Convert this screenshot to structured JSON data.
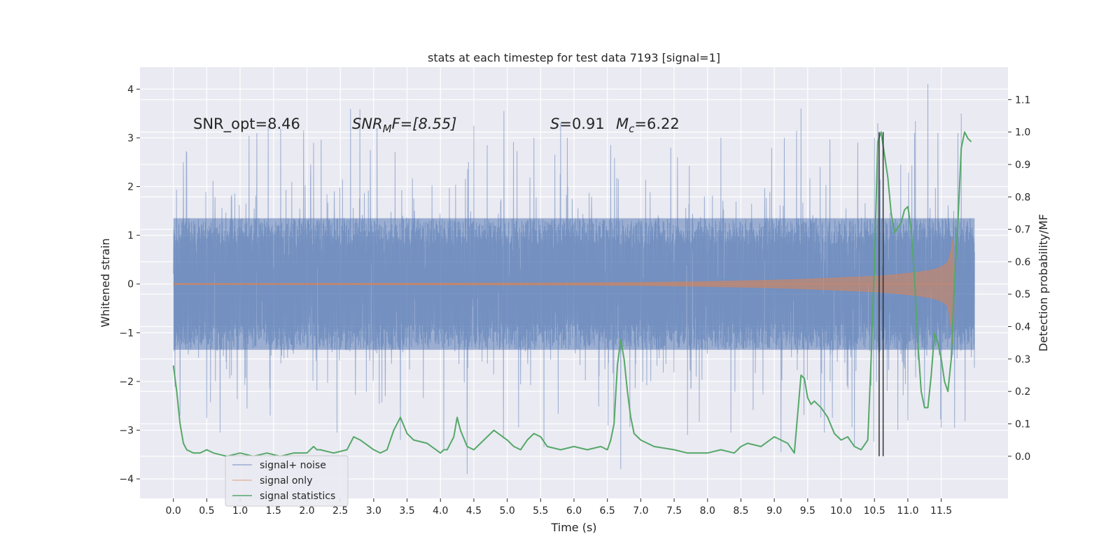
{
  "chart_data": {
    "type": "line",
    "title": "stats at each timestep for test data 7193 [signal=1]",
    "xlabel": "Time (s)",
    "ylabel": "Whitened strain",
    "y2label": "Detection probability/MF",
    "xlim": [
      -0.5,
      12.5
    ],
    "ylim": [
      -4.4,
      4.45
    ],
    "y2lim": [
      -0.13,
      1.2
    ],
    "x_ticks": [
      0.0,
      0.5,
      1.0,
      1.5,
      2.0,
      2.5,
      3.0,
      3.5,
      4.0,
      4.5,
      5.0,
      5.5,
      6.0,
      6.5,
      7.0,
      7.5,
      8.0,
      8.5,
      9.0,
      9.5,
      10.0,
      10.5,
      11.0,
      11.5
    ],
    "x_tick_labels": [
      "0.0",
      "0.5",
      "1.0",
      "1.5",
      "2.0",
      "2.5",
      "3.0",
      "3.5",
      "4.0",
      "4.5",
      "5.0",
      "5.5",
      "6.0",
      "6.5",
      "7.0",
      "7.5",
      "8.0",
      "8.5",
      "9.0",
      "9.5",
      "10.0",
      "10.5",
      "11.0",
      "11.5"
    ],
    "y_ticks": [
      -4,
      -3,
      -2,
      -1,
      0,
      1,
      2,
      3,
      4
    ],
    "y_tick_labels": [
      "−4",
      "−3",
      "−2",
      "−1",
      "0",
      "1",
      "2",
      "3",
      "4"
    ],
    "y2_ticks": [
      0.0,
      0.1,
      0.2,
      0.3,
      0.4,
      0.5,
      0.6,
      0.7,
      0.8,
      0.9,
      1.0,
      1.1
    ],
    "y2_tick_labels": [
      "0.0",
      "0.1",
      "0.2",
      "0.3",
      "0.4",
      "0.5",
      "0.6",
      "0.7",
      "0.8",
      "0.9",
      "1.0",
      "1.1"
    ],
    "grid": true,
    "legend_position": "lower-left",
    "annotations": {
      "snr_opt": "SNR_opt=8.46",
      "snr_mf": {
        "base": "SNR",
        "sub": "M",
        "rest": "F=[8.55]"
      },
      "s_val": {
        "sym": "S",
        "rest": "=0.91"
      },
      "mc_val": {
        "sym": "M",
        "sub": "c",
        "rest": "=6.22"
      }
    },
    "vertical_lines_x": [
      10.57,
      10.63
    ],
    "noise_series": {
      "name": "signal+ noise",
      "color": "#4c72b0",
      "x_range": [
        0.0,
        12.0
      ],
      "core_amplitude": 1.35,
      "typical_peak": 2.2,
      "outlier_peaks_upper": [
        {
          "x": 0.05,
          "y": 2.0
        },
        {
          "x": 0.15,
          "y": 2.5
        },
        {
          "x": 0.2,
          "y": 2.7
        },
        {
          "x": 0.7,
          "y": 2.85
        },
        {
          "x": 1.25,
          "y": 3.1
        },
        {
          "x": 1.95,
          "y": 3.15
        },
        {
          "x": 2.1,
          "y": 2.9
        },
        {
          "x": 2.95,
          "y": 2.75
        },
        {
          "x": 3.05,
          "y": 3.2
        },
        {
          "x": 4.5,
          "y": 3.25
        },
        {
          "x": 4.7,
          "y": 2.85
        },
        {
          "x": 4.95,
          "y": 3.55
        },
        {
          "x": 5.4,
          "y": 3.0
        },
        {
          "x": 5.8,
          "y": 3.3
        },
        {
          "x": 5.9,
          "y": 3.0
        },
        {
          "x": 6.55,
          "y": 2.85
        },
        {
          "x": 7.45,
          "y": 2.8
        },
        {
          "x": 7.55,
          "y": 2.6
        },
        {
          "x": 8.2,
          "y": 3.0
        },
        {
          "x": 9.15,
          "y": 3.0
        },
        {
          "x": 9.4,
          "y": 3.6
        },
        {
          "x": 10.25,
          "y": 2.9
        },
        {
          "x": 10.5,
          "y": 3.0
        },
        {
          "x": 10.55,
          "y": 3.3
        },
        {
          "x": 11.1,
          "y": 3.1
        },
        {
          "x": 11.3,
          "y": 4.1
        },
        {
          "x": 11.45,
          "y": 3.1
        },
        {
          "x": 11.75,
          "y": 3.1
        },
        {
          "x": 11.8,
          "y": 3.5
        },
        {
          "x": 11.95,
          "y": 3.0
        }
      ],
      "outlier_peaks_lower": [
        {
          "x": 0.05,
          "y": -1.0
        },
        {
          "x": 0.1,
          "y": -2.7
        },
        {
          "x": 0.5,
          "y": -2.75
        },
        {
          "x": 0.7,
          "y": -3.05
        },
        {
          "x": 1.45,
          "y": -2.7
        },
        {
          "x": 2.45,
          "y": -3.05
        },
        {
          "x": 3.4,
          "y": -3.2
        },
        {
          "x": 4.05,
          "y": -3.4
        },
        {
          "x": 4.4,
          "y": -3.9
        },
        {
          "x": 5.55,
          "y": -3.35
        },
        {
          "x": 6.7,
          "y": -3.8
        },
        {
          "x": 7.7,
          "y": -3.1
        },
        {
          "x": 8.35,
          "y": -3.05
        },
        {
          "x": 9.1,
          "y": -3.45
        },
        {
          "x": 9.75,
          "y": -3.05
        },
        {
          "x": 10.2,
          "y": -3.35
        },
        {
          "x": 10.85,
          "y": -3.0
        },
        {
          "x": 11.0,
          "y": -2.8
        },
        {
          "x": 11.25,
          "y": -2.5
        },
        {
          "x": 11.5,
          "y": -2.95
        },
        {
          "x": 11.7,
          "y": -2.95
        },
        {
          "x": 11.95,
          "y": -1.5
        }
      ]
    },
    "signal_series": {
      "name": "signal only",
      "color": "#dd8452",
      "envelope_x": [
        0.0,
        5.5,
        7.0,
        8.0,
        9.0,
        9.5,
        10.0,
        10.5,
        10.8,
        11.0,
        11.2,
        11.4,
        11.5,
        11.6,
        11.65,
        11.68,
        11.7
      ],
      "envelope_y": [
        0.01,
        0.02,
        0.03,
        0.05,
        0.08,
        0.1,
        0.13,
        0.16,
        0.19,
        0.22,
        0.25,
        0.3,
        0.35,
        0.45,
        0.7,
        0.95,
        0.0
      ]
    },
    "stat_series": {
      "name": "signal statistics",
      "color": "#55a868",
      "x": [
        0.0,
        0.05,
        0.1,
        0.15,
        0.2,
        0.3,
        0.4,
        0.5,
        0.6,
        0.8,
        1.0,
        1.2,
        1.4,
        1.6,
        1.8,
        2.0,
        2.1,
        2.15,
        2.2,
        2.4,
        2.6,
        2.7,
        2.8,
        3.0,
        3.1,
        3.2,
        3.3,
        3.35,
        3.4,
        3.5,
        3.6,
        3.8,
        4.0,
        4.05,
        4.1,
        4.2,
        4.25,
        4.3,
        4.4,
        4.5,
        4.6,
        4.7,
        4.8,
        5.0,
        5.1,
        5.2,
        5.3,
        5.4,
        5.5,
        5.6,
        5.8,
        6.0,
        6.2,
        6.4,
        6.5,
        6.55,
        6.6,
        6.65,
        6.7,
        6.75,
        6.8,
        6.85,
        6.9,
        7.0,
        7.2,
        7.5,
        7.7,
        7.8,
        8.0,
        8.2,
        8.4,
        8.5,
        8.6,
        8.8,
        9.0,
        9.2,
        9.3,
        9.4,
        9.45,
        9.5,
        9.55,
        9.6,
        9.7,
        9.8,
        9.9,
        10.0,
        10.1,
        10.2,
        10.3,
        10.4,
        10.45,
        10.5,
        10.55,
        10.6,
        10.65,
        10.7,
        10.75,
        10.8,
        10.9,
        10.95,
        11.0,
        11.05,
        11.1,
        11.15,
        11.2,
        11.25,
        11.3,
        11.35,
        11.4,
        11.45,
        11.5,
        11.55,
        11.6,
        11.65,
        11.7,
        11.75,
        11.8,
        11.85,
        11.9,
        11.95
      ],
      "y": [
        0.28,
        0.2,
        0.1,
        0.04,
        0.02,
        0.01,
        0.01,
        0.02,
        0.01,
        0.0,
        0.01,
        0.0,
        0.01,
        0.0,
        0.01,
        0.01,
        0.03,
        0.02,
        0.02,
        0.01,
        0.02,
        0.06,
        0.05,
        0.02,
        0.01,
        0.02,
        0.08,
        0.1,
        0.12,
        0.07,
        0.05,
        0.04,
        0.01,
        0.02,
        0.02,
        0.06,
        0.12,
        0.08,
        0.03,
        0.02,
        0.04,
        0.06,
        0.08,
        0.05,
        0.03,
        0.02,
        0.05,
        0.07,
        0.06,
        0.03,
        0.02,
        0.03,
        0.02,
        0.03,
        0.02,
        0.05,
        0.1,
        0.28,
        0.36,
        0.3,
        0.2,
        0.12,
        0.07,
        0.05,
        0.03,
        0.02,
        0.01,
        0.01,
        0.01,
        0.02,
        0.01,
        0.03,
        0.04,
        0.03,
        0.06,
        0.04,
        0.01,
        0.25,
        0.24,
        0.18,
        0.16,
        0.17,
        0.15,
        0.12,
        0.07,
        0.05,
        0.06,
        0.03,
        0.02,
        0.05,
        0.3,
        0.6,
        0.97,
        1.0,
        0.93,
        0.86,
        0.75,
        0.69,
        0.72,
        0.76,
        0.77,
        0.7,
        0.55,
        0.35,
        0.2,
        0.15,
        0.15,
        0.25,
        0.38,
        0.35,
        0.3,
        0.23,
        0.2,
        0.3,
        0.55,
        0.72,
        0.95,
        1.0,
        0.98,
        0.97
      ]
    },
    "legend": {
      "entries": [
        "signal+ noise",
        "signal only",
        "signal statistics"
      ]
    }
  }
}
